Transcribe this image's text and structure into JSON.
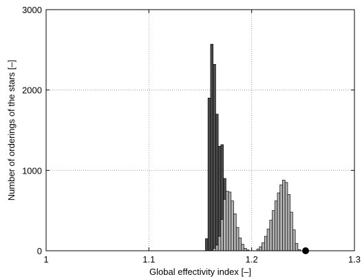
{
  "chart_data": {
    "type": "histogram",
    "title": "",
    "xlabel": "Global effectivity index [–]",
    "ylabel": "Number of orderings of the stars [–]",
    "xlim": [
      1,
      1.3
    ],
    "ylim": [
      0,
      3000
    ],
    "x_ticks": [
      "1",
      "1.1",
      "1.2",
      "1.3"
    ],
    "y_ticks": [
      "0",
      "1000",
      "2000",
      "3000"
    ],
    "grid": true,
    "colors": {
      "dark": "#4d4d4d",
      "light": "#b3b3b3",
      "edge": "#000000",
      "grid": "#8c8c8c"
    },
    "series": [
      {
        "style": "dark",
        "bin_width": 0.0025,
        "bins_left": [
          1.155,
          1.1575,
          1.16,
          1.1625,
          1.165,
          1.1675,
          1.17,
          1.1725
        ],
        "values": [
          150,
          1900,
          2570,
          2320,
          1700,
          1300,
          1320,
          900
        ]
      },
      {
        "style": "light",
        "bin_width": 0.0025,
        "bins_left": [
          1.1625,
          1.165,
          1.1675,
          1.17,
          1.1725,
          1.175,
          1.1775,
          1.18,
          1.1825,
          1.185,
          1.1875,
          1.19,
          1.1925,
          1.195
        ],
        "values": [
          30,
          70,
          180,
          390,
          640,
          740,
          730,
          620,
          460,
          290,
          160,
          80,
          30,
          10
        ]
      },
      {
        "style": "light",
        "bin_width": 0.0025,
        "bins_left": [
          1.205,
          1.2075,
          1.21,
          1.2125,
          1.215,
          1.2175,
          1.22,
          1.2225,
          1.225,
          1.2275,
          1.23,
          1.2325,
          1.235,
          1.2375,
          1.24,
          1.2425,
          1.245
        ],
        "values": [
          20,
          50,
          100,
          180,
          270,
          380,
          500,
          620,
          720,
          820,
          880,
          850,
          700,
          480,
          260,
          90,
          15
        ]
      }
    ],
    "marker": {
      "x": 1.2525,
      "y": 0
    }
  }
}
